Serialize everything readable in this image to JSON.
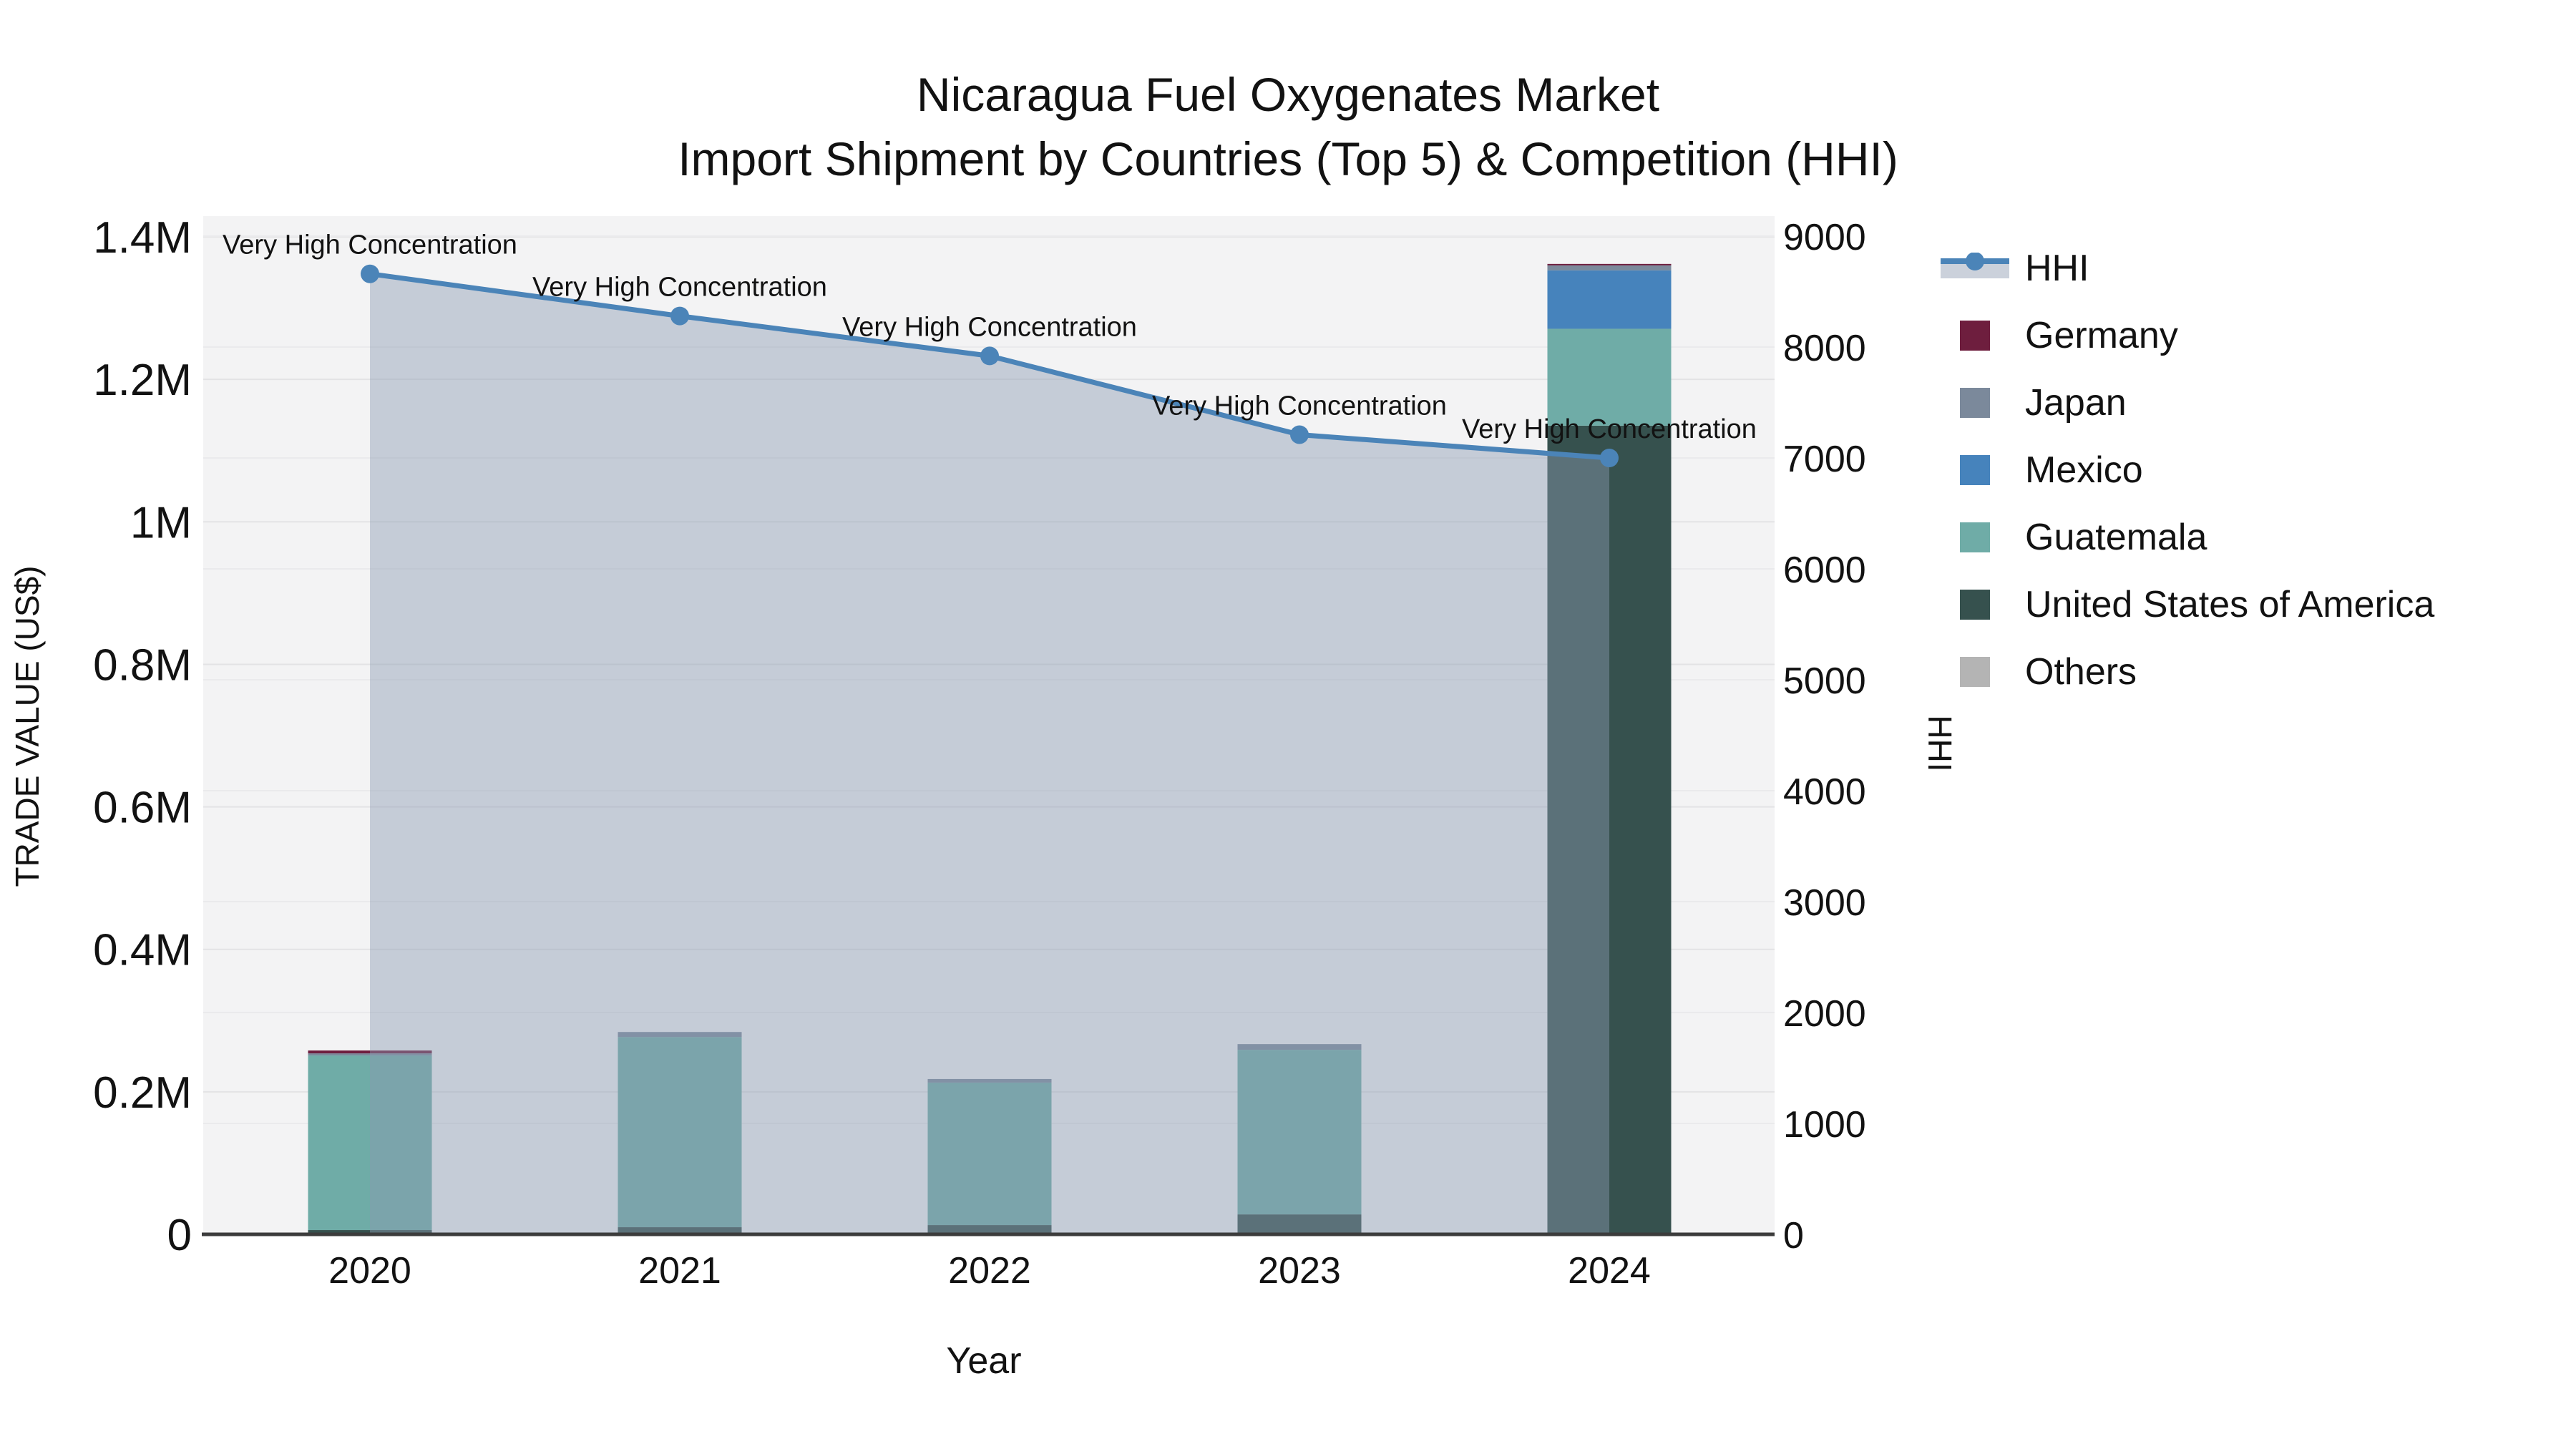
{
  "chart_data": {
    "type": "bar",
    "subtype": "stacked-bars-with-line-dual-axis",
    "title": "Nicaragua Fuel Oxygenates Market",
    "subtitle": "Import Shipment by Countries (Top 5) & Competition (HHI)",
    "xlabel": "Year",
    "ylabel_left": "TRADE VALUE (US$)",
    "ylabel_right": "HHI",
    "categories": [
      "2020",
      "2021",
      "2022",
      "2023",
      "2024"
    ],
    "y_left_axis": {
      "min": 0,
      "max": 1400000,
      "tick_step": 200000,
      "tick_labels": [
        "0",
        "0.2M",
        "0.4M",
        "0.6M",
        "0.8M",
        "1M",
        "1.2M",
        "1.4M"
      ]
    },
    "y_right_axis": {
      "min": 0,
      "max": 9000,
      "tick_step": 1000,
      "tick_labels": [
        "0",
        "1000",
        "2000",
        "3000",
        "4000",
        "5000",
        "6000",
        "7000",
        "8000",
        "9000"
      ]
    },
    "series": [
      {
        "name": "Germany",
        "color": "#6E1E3E",
        "values": [
          4000,
          0,
          0,
          0,
          2000
        ]
      },
      {
        "name": "Japan",
        "color": "#7B899B",
        "values": [
          3000,
          7000,
          5000,
          8000,
          7000
        ]
      },
      {
        "name": "Mexico",
        "color": "#4683BC",
        "values": [
          0,
          0,
          0,
          0,
          82000
        ]
      },
      {
        "name": "Guatemala",
        "color": "#6FACA7",
        "values": [
          245000,
          267000,
          200000,
          231000,
          136000
        ]
      },
      {
        "name": "United States of America",
        "color": "#36514E",
        "values": [
          6000,
          10000,
          13000,
          28000,
          1135000
        ]
      },
      {
        "name": "Others",
        "color": "#B4B4B4",
        "values": [
          0,
          0,
          0,
          0,
          0
        ]
      }
    ],
    "stack_order_bottom_to_top": [
      "United States of America",
      "Guatemala",
      "Mexico",
      "Japan",
      "Germany",
      "Others"
    ],
    "hhi_line": {
      "name": "HHI",
      "color": "#4B84B8",
      "area_color": "rgba(139,154,178,0.44)",
      "values": [
        8660,
        8280,
        7920,
        7210,
        7000
      ]
    },
    "annotations": [
      {
        "category": "2020",
        "text": "Very High Concentration"
      },
      {
        "category": "2021",
        "text": "Very High Concentration"
      },
      {
        "category": "2022",
        "text": "Very High Concentration"
      },
      {
        "category": "2023",
        "text": "Very High Concentration"
      },
      {
        "category": "2024",
        "text": "Very High Concentration"
      }
    ],
    "legend": {
      "entries": [
        "HHI",
        "Germany",
        "Japan",
        "Mexico",
        "Guatemala",
        "United States of America",
        "Others"
      ]
    },
    "colors": {
      "plot_bg": "#F3F3F4",
      "grid_left": "#E3E3E5",
      "grid_right": "#EAEAEC",
      "axis_line": "#3C3C3C",
      "text": "#121212"
    },
    "layout_hints": {
      "grid": "horizontal-only",
      "legend_position": "right-outside-top",
      "area_fill_under_line": true
    }
  }
}
